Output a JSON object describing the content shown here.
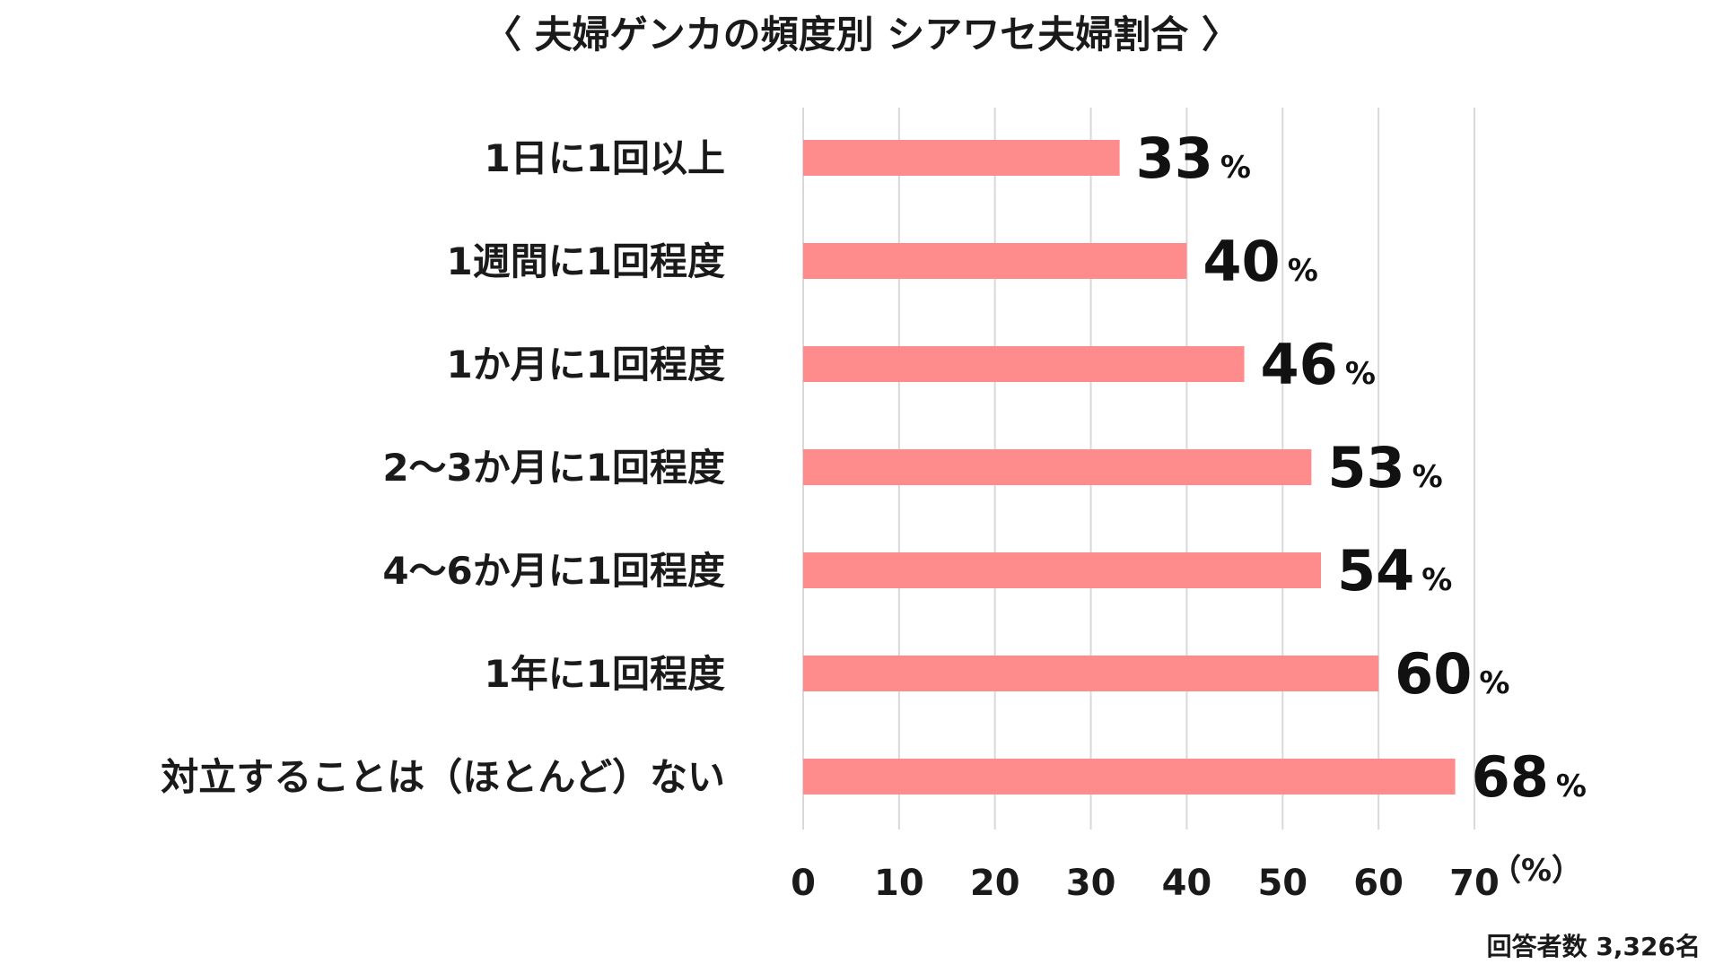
{
  "chart_data": {
    "type": "bar",
    "orientation": "horizontal",
    "title": "〈 夫婦ゲンカの頻度別 シアワセ夫婦割合 〉",
    "categories": [
      "1日に1回以上",
      "1週間に1回程度",
      "1か月に1回程度",
      "2～3か月に1回程度",
      "4～6か月に1回程度",
      "1年に1回程度",
      "対立することは（ほとんど）ない"
    ],
    "values": [
      33,
      40,
      46,
      53,
      54,
      60,
      68
    ],
    "value_suffix": "%",
    "xlim": [
      0,
      70
    ],
    "xticks": [
      0,
      10,
      20,
      30,
      40,
      50,
      60,
      70
    ],
    "x_unit_label": "（%）",
    "grid": true,
    "bar_color": "#FF8C8C",
    "grid_color": "#D9D9D9",
    "footnote": "回答者数 3,326名"
  }
}
